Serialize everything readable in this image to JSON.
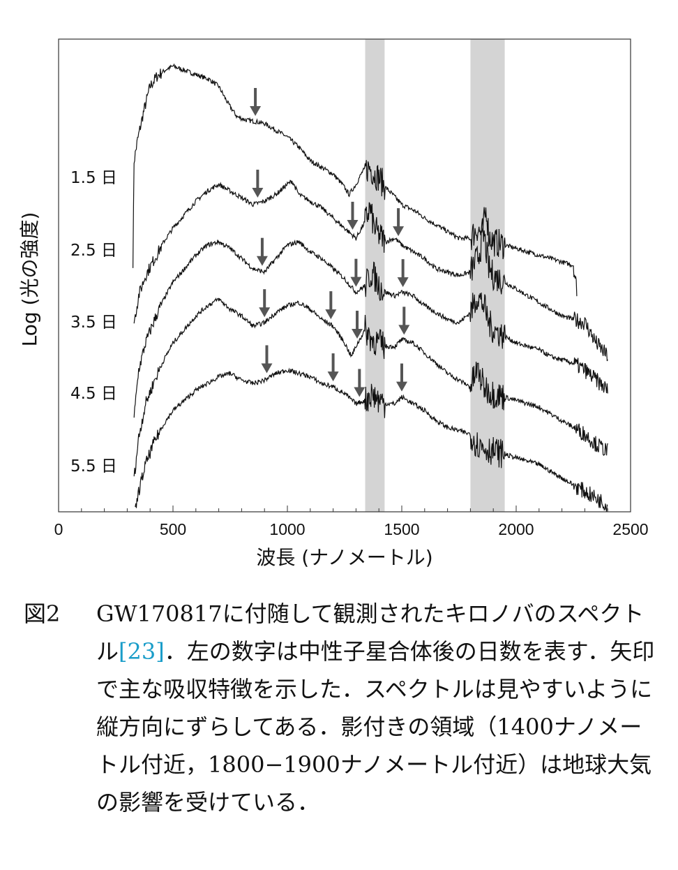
{
  "chart_data": {
    "type": "line",
    "title": "",
    "xlabel": "波長 (ナノメートル)",
    "ylabel": "Log (光の強度)",
    "xlim": [
      0,
      2500
    ],
    "ylim": [
      0,
      7
    ],
    "x_ticks": [
      0,
      500,
      1000,
      1500,
      2000,
      2500
    ],
    "grid": false,
    "legend": "none",
    "shaded_bands": [
      [
        1340,
        1425
      ],
      [
        1800,
        1950
      ]
    ],
    "series": [
      {
        "name": "1.5 日",
        "x": [
          325,
          330,
          345,
          370,
          400,
          430,
          470,
          500,
          540,
          580,
          620,
          660,
          700,
          740,
          780,
          820,
          860,
          900,
          950,
          1000,
          1050,
          1100,
          1150,
          1200,
          1240,
          1270,
          1300,
          1330,
          1360,
          1380,
          1400,
          1430,
          1460,
          1500,
          1560,
          1600,
          1650,
          1700,
          1750,
          1800,
          1830,
          1850,
          1870,
          1880,
          1900,
          1950,
          2000,
          2050,
          2100,
          2150,
          2200,
          2250,
          2265
        ],
        "y": [
          3.7,
          5.2,
          5.5,
          5.9,
          6.3,
          6.45,
          6.55,
          6.6,
          6.55,
          6.5,
          6.45,
          6.4,
          6.3,
          6.05,
          5.85,
          5.8,
          5.78,
          5.75,
          5.65,
          5.55,
          5.4,
          5.2,
          5.1,
          5.0,
          4.85,
          4.7,
          4.85,
          5.05,
          5.1,
          5.0,
          4.95,
          4.8,
          4.7,
          4.55,
          4.45,
          4.35,
          4.25,
          4.15,
          4.05,
          4.05,
          4.2,
          4.1,
          4.5,
          4.1,
          4.0,
          3.95,
          3.9,
          3.85,
          3.8,
          3.75,
          3.7,
          3.65,
          3.3
        ]
      },
      {
        "name": "2.5 日",
        "x": [
          330,
          350,
          380,
          420,
          460,
          500,
          550,
          600,
          650,
          700,
          750,
          800,
          850,
          900,
          950,
          1000,
          1020,
          1050,
          1100,
          1150,
          1200,
          1250,
          1300,
          1340,
          1360,
          1380,
          1400,
          1430,
          1470,
          1500,
          1550,
          1600,
          1650,
          1700,
          1750,
          1800,
          1830,
          1860,
          1880,
          1900,
          1950,
          2000,
          2050,
          2100,
          2150,
          2200,
          2250,
          2300,
          2350,
          2400
        ],
        "y": [
          2.8,
          3.2,
          3.5,
          3.75,
          4.0,
          4.2,
          4.4,
          4.6,
          4.75,
          4.85,
          4.75,
          4.65,
          4.55,
          4.6,
          4.7,
          4.85,
          4.9,
          4.7,
          4.6,
          4.5,
          4.35,
          4.2,
          4.05,
          4.3,
          4.5,
          4.2,
          4.1,
          4.0,
          4.05,
          3.95,
          3.85,
          3.75,
          3.6,
          3.55,
          3.5,
          3.55,
          3.75,
          4.1,
          3.6,
          3.5,
          3.4,
          3.3,
          3.2,
          3.1,
          3.0,
          2.9,
          2.85,
          2.8,
          2.5,
          2.3
        ]
      },
      {
        "name": "3.5 日",
        "x": [
          330,
          350,
          380,
          420,
          460,
          500,
          550,
          600,
          650,
          700,
          750,
          800,
          850,
          900,
          950,
          1000,
          1050,
          1100,
          1150,
          1200,
          1250,
          1300,
          1340,
          1370,
          1400,
          1430,
          1470,
          1500,
          1550,
          1600,
          1650,
          1700,
          1750,
          1800,
          1830,
          1860,
          1880,
          1900,
          1950,
          2000,
          2050,
          2100,
          2150,
          2200,
          2250,
          2300,
          2350,
          2400
        ],
        "y": [
          1.4,
          2.1,
          2.5,
          2.85,
          3.15,
          3.4,
          3.6,
          3.8,
          3.95,
          4.0,
          3.9,
          3.75,
          3.6,
          3.55,
          3.75,
          3.95,
          4.0,
          3.85,
          3.75,
          3.6,
          3.45,
          3.25,
          3.35,
          3.55,
          3.35,
          3.25,
          3.2,
          3.25,
          3.2,
          3.05,
          2.95,
          2.85,
          2.8,
          2.95,
          3.2,
          3.05,
          2.8,
          2.7,
          2.6,
          2.5,
          2.45,
          2.4,
          2.3,
          2.25,
          2.2,
          2.1,
          1.95,
          1.8
        ]
      },
      {
        "name": "4.5 日",
        "x": [
          330,
          350,
          380,
          420,
          460,
          500,
          550,
          600,
          650,
          700,
          750,
          800,
          850,
          900,
          950,
          1000,
          1050,
          1100,
          1150,
          1200,
          1250,
          1280,
          1300,
          1340,
          1370,
          1400,
          1430,
          1470,
          1500,
          1550,
          1600,
          1650,
          1700,
          1750,
          1800,
          1830,
          1860,
          1900,
          1950,
          2000,
          2050,
          2100,
          2150,
          2200,
          2250,
          2300,
          2350,
          2400
        ],
        "y": [
          0.5,
          1.1,
          1.6,
          1.95,
          2.25,
          2.5,
          2.7,
          2.9,
          3.05,
          3.15,
          3.0,
          2.9,
          2.75,
          2.8,
          2.95,
          3.05,
          3.1,
          3.0,
          2.85,
          2.75,
          2.5,
          2.3,
          2.45,
          2.7,
          2.55,
          2.5,
          2.45,
          2.45,
          2.55,
          2.5,
          2.35,
          2.2,
          2.05,
          1.95,
          1.85,
          2.1,
          1.85,
          1.75,
          1.7,
          1.65,
          1.6,
          1.55,
          1.45,
          1.35,
          1.25,
          1.15,
          1.0,
          0.9
        ]
      },
      {
        "name": "5.5 日",
        "x": [
          335,
          350,
          380,
          420,
          460,
          500,
          550,
          600,
          650,
          700,
          750,
          800,
          850,
          900,
          950,
          1000,
          1050,
          1100,
          1150,
          1200,
          1250,
          1300,
          1340,
          1370,
          1400,
          1430,
          1470,
          1500,
          1550,
          1600,
          1650,
          1700,
          1750,
          1800,
          1830,
          1860,
          1900,
          1950,
          2000,
          2050,
          2100,
          2150,
          2200,
          2250,
          2300,
          2350,
          2400
        ],
        "y": [
          0.0,
          0.3,
          0.7,
          1.05,
          1.3,
          1.5,
          1.65,
          1.8,
          1.9,
          2.0,
          2.05,
          1.95,
          1.9,
          1.95,
          2.05,
          2.1,
          2.05,
          2.0,
          1.9,
          1.85,
          1.75,
          1.6,
          1.65,
          1.75,
          1.65,
          1.6,
          1.6,
          1.7,
          1.6,
          1.5,
          1.35,
          1.25,
          1.2,
          1.15,
          1.0,
          0.95,
          0.9,
          0.85,
          0.8,
          0.75,
          0.7,
          0.6,
          0.5,
          0.4,
          0.3,
          0.2,
          0.1
        ]
      }
    ],
    "annotations": {
      "arrow_note": "absorption features",
      "arrows": [
        {
          "series": "1.5 日",
          "x": 860
        },
        {
          "series": "2.5 日",
          "x": 870
        },
        {
          "series": "2.5 日",
          "x": 1285
        },
        {
          "series": "2.5 日",
          "x": 1485
        },
        {
          "series": "3.5 日",
          "x": 890
        },
        {
          "series": "3.5 日",
          "x": 1300
        },
        {
          "series": "3.5 日",
          "x": 1505
        },
        {
          "series": "4.5 日",
          "x": 900
        },
        {
          "series": "4.5 日",
          "x": 1190
        },
        {
          "series": "4.5 日",
          "x": 1305
        },
        {
          "series": "4.5 日",
          "x": 1510
        },
        {
          "series": "5.5 日",
          "x": 910
        },
        {
          "series": "5.5 日",
          "x": 1200
        },
        {
          "series": "5.5 日",
          "x": 1315
        },
        {
          "series": "5.5 日",
          "x": 1500
        }
      ]
    }
  },
  "caption": {
    "label": "図2",
    "text_before_ref": "GW170817に付随して観測されたキロノバのスペクトル",
    "ref": "[23]",
    "text_after_ref": "．左の数字は中性子星合体後の日数を表す．矢印で主な吸収特徴を示した．スペクトルは見やすいように縦方向にずらしてある．影付きの領域（1400ナノメートル付近，1800−1900ナノメートル付近）は地球大気の影響を受けている．"
  },
  "colors": {
    "spectrum": "#111111",
    "arrow": "#555555",
    "band": "#d4d4d4",
    "ref_link": "#1a9dc9"
  }
}
